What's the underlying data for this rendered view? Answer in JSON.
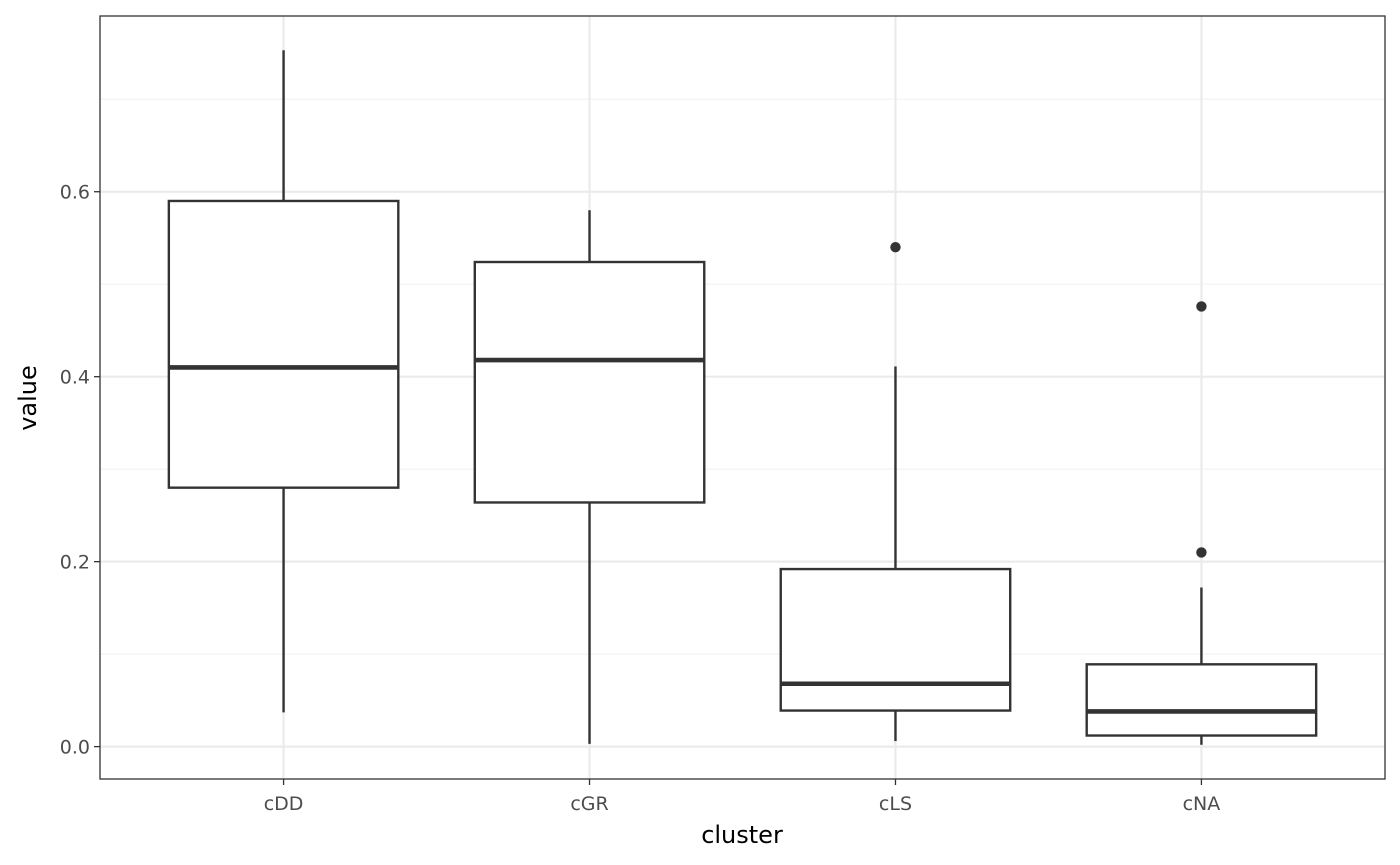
{
  "chart_data": {
    "type": "boxplot",
    "title": "",
    "xlabel": "cluster",
    "ylabel": "value",
    "ylim": [
      -0.035,
      0.79
    ],
    "y_ticks": [
      0.0,
      0.2,
      0.4,
      0.6
    ],
    "y_tick_labels": [
      "0.0",
      "0.2",
      "0.4",
      "0.6"
    ],
    "categories": [
      "cDD",
      "cGR",
      "cLS",
      "cNA"
    ],
    "boxes": [
      {
        "category": "cDD",
        "whisker_low": 0.037,
        "q1": 0.28,
        "median": 0.41,
        "q3": 0.59,
        "whisker_high": 0.753,
        "outliers": []
      },
      {
        "category": "cGR",
        "whisker_low": 0.003,
        "q1": 0.264,
        "median": 0.418,
        "q3": 0.524,
        "whisker_high": 0.58,
        "outliers": []
      },
      {
        "category": "cLS",
        "whisker_low": 0.006,
        "q1": 0.039,
        "median": 0.068,
        "q3": 0.192,
        "whisker_high": 0.411,
        "outliers": [
          0.54
        ]
      },
      {
        "category": "cNA",
        "whisker_low": 0.002,
        "q1": 0.012,
        "median": 0.038,
        "q3": 0.089,
        "whisker_high": 0.172,
        "outliers": [
          0.21,
          0.476
        ]
      }
    ],
    "grid": true,
    "theme": "bw",
    "colors": {
      "panel_border": "#333333",
      "grid_major": "#ebebeb",
      "grid_minor": "#f2f2f2",
      "box_stroke": "#333333",
      "box_fill": "#ffffff",
      "tick_label": "#4d4d4d",
      "axis_title": "#000000"
    }
  }
}
